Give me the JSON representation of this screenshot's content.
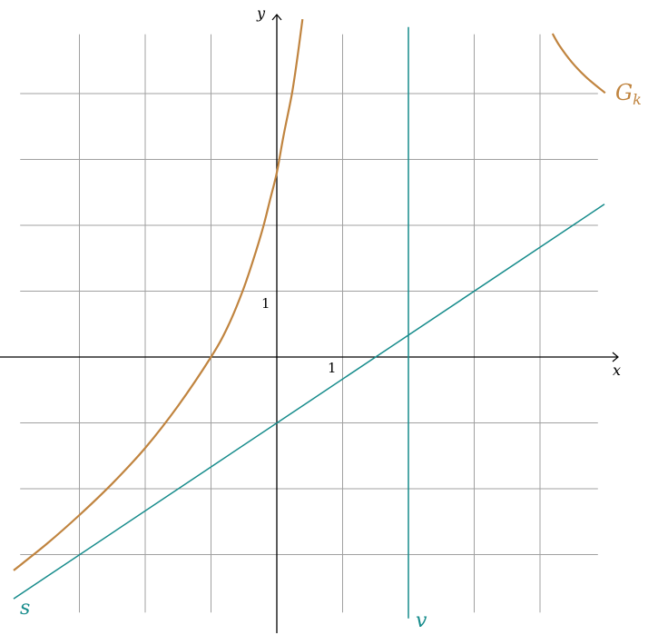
{
  "chart_data": {
    "type": "line",
    "title": "",
    "xlabel": "x",
    "ylabel": "y",
    "grid": true,
    "grid_range": {
      "x": [
        -3.9,
        4.88
      ],
      "y": [
        -3.88,
        4.9
      ]
    },
    "xlim": [
      -4.2,
      5.3
    ],
    "ylim": [
      -4.1,
      5.3
    ],
    "tick_labels": {
      "x": [
        "1"
      ],
      "y": [
        "1"
      ]
    },
    "colors": {
      "G_k": "#c0843f",
      "s": "#178c8c",
      "v": "#178c8c",
      "axis": "#000000",
      "grid": "#a0a0a0"
    },
    "series": [
      {
        "name": "G_k",
        "label": "G",
        "label_sub": "k",
        "branches": [
          [
            [
              -4.0,
              -3.24
            ],
            [
              -3.5,
              -2.84
            ],
            [
              -3.0,
              -2.4
            ],
            [
              -2.5,
              -1.92
            ],
            [
              -2.0,
              -1.38
            ],
            [
              -1.5,
              -0.74
            ],
            [
              -1.0,
              0.0
            ],
            [
              -0.75,
              0.45
            ],
            [
              -0.52,
              1.0
            ],
            [
              -0.35,
              1.5
            ],
            [
              -0.2,
              2.0
            ],
            [
              -0.1,
              2.4
            ],
            [
              0.0,
              2.8
            ],
            [
              0.1,
              3.35
            ],
            [
              0.23,
              4.0
            ],
            [
              0.32,
              4.6
            ],
            [
              0.39,
              5.13
            ]
          ],
          [
            [
              4.19,
              4.91
            ],
            [
              4.3,
              4.72
            ],
            [
              4.48,
              4.48
            ],
            [
              4.7,
              4.25
            ],
            [
              4.99,
              4.01
            ]
          ]
        ]
      },
      {
        "name": "s",
        "label": "s",
        "equation": "y = (2/3)x - 1",
        "points": [
          [
            -4.0,
            -3.67
          ],
          [
            4.98,
            2.32
          ]
        ]
      },
      {
        "name": "v",
        "label": "v",
        "equation": "x = 2",
        "points": [
          [
            2.0,
            -3.97
          ],
          [
            2.0,
            5.01
          ]
        ]
      }
    ]
  },
  "labels": {
    "x_axis": "x",
    "y_axis": "y",
    "x_tick_one": "1",
    "y_tick_one": "1",
    "curve_G": "G",
    "curve_G_sub": "k",
    "line_s": "s",
    "line_v": "v"
  }
}
